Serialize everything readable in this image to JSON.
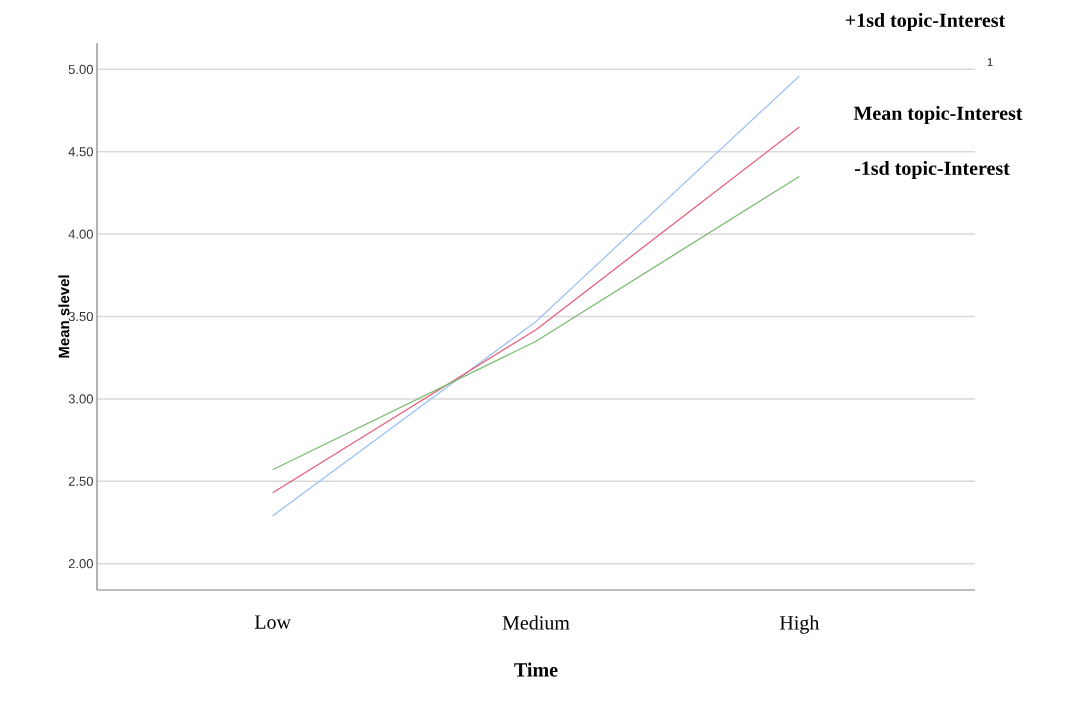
{
  "chart_data": {
    "type": "line",
    "xlabel": "Time",
    "ylabel": "Mean slevel",
    "categories": [
      "Low",
      "Medium",
      "High"
    ],
    "series": [
      {
        "name": "+1sd topic-Interest",
        "color": "#9fc4f0",
        "values": [
          2.29,
          3.47,
          4.96
        ]
      },
      {
        "name": "Mean topic-Interest",
        "color": "#e6607a",
        "values": [
          2.43,
          3.42,
          4.65
        ]
      },
      {
        "name": "-1sd topic-Interest",
        "color": "#7dbb73",
        "values": [
          2.57,
          3.35,
          4.35
        ]
      }
    ],
    "ylim": [
      1.84,
      5.16
    ],
    "yticks": [
      {
        "value": 2,
        "label": "2.00"
      },
      {
        "value": 2.5,
        "label": "2.50"
      },
      {
        "value": 3,
        "label": "3.00"
      },
      {
        "value": 3.5,
        "label": "3.50"
      },
      {
        "value": 4,
        "label": "4.00"
      },
      {
        "value": 4.5,
        "label": "4.50"
      },
      {
        "value": 5,
        "label": "5.00"
      }
    ],
    "grid": "y",
    "legend": false,
    "marker": "none",
    "line_style": "solid",
    "annotations": [
      "1"
    ]
  }
}
